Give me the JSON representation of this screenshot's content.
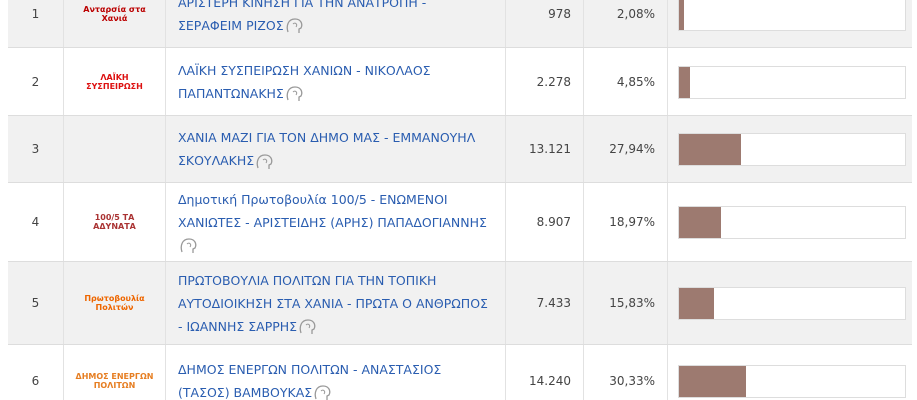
{
  "table": {
    "rows": [
      {
        "rank": "1",
        "logo_text": "Ανταρσία στα Χανιά",
        "name": "ΑΡΙΣΤΕΡΗ ΚΙΝΗΣΗ ΓΙΑ ΤΗΝ ΑΝΑΤΡΟΠΗ - ΣΕΡΑΦΕΙΜ ΡΙΖΟΣ",
        "votes": "978",
        "percent": {
          "value": 2.08,
          "label": "2,08%"
        }
      },
      {
        "rank": "2",
        "logo_text": "ΛΑΪΚΗ ΣΥΣΠΕΙΡΩΣΗ",
        "name": "ΛΑΪΚΗ ΣΥΣΠΕΙΡΩΣΗ ΧΑΝΙΩΝ - ΝΙΚΟΛΑΟΣ ΠΑΠΑΝΤΩΝΑΚΗΣ",
        "votes": "2.278",
        "percent": {
          "value": 4.85,
          "label": "4,85%"
        }
      },
      {
        "rank": "3",
        "logo_text": "",
        "name": "ΧΑΝΙΑ ΜΑΖΙ ΓΙΑ ΤΟΝ ΔΗΜΟ ΜΑΣ - ΕΜΜΑΝΟΥΗΛ ΣΚΟΥΛΑΚΗΣ",
        "votes": "13.121",
        "percent": {
          "value": 27.94,
          "label": "27,94%"
        }
      },
      {
        "rank": "4",
        "logo_text": "100/5 ΤΑ ΑΔΥΝΑΤΑ",
        "name": "Δημοτική Πρωτοβουλία 100/5 - ΕΝΩΜΕΝΟΙ ΧΑΝΙΩΤΕΣ - ΑΡΙΣΤΕΙΔΗΣ (ΑΡΗΣ) ΠΑΠΑΔΟΓΙΑΝΝΗΣ",
        "votes": "8.907",
        "percent": {
          "value": 18.97,
          "label": "18,97%"
        }
      },
      {
        "rank": "5",
        "logo_text": "Πρωτοβουλία Πολιτών",
        "name": "ΠΡΩΤΟΒΟΥΛΙΑ ΠΟΛΙΤΩΝ ΓΙΑ ΤΗΝ ΤΟΠΙΚΗ ΑΥΤΟΔΙΟΙΚΗΣΗ ΣΤΑ ΧΑΝΙΑ - ΠΡΩΤΑ Ο ΑΝΘΡΩΠΟΣ - ΙΩΑΝΝΗΣ ΣΑΡΡΗΣ",
        "votes": "7.433",
        "percent": {
          "value": 15.83,
          "label": "15,83%"
        }
      },
      {
        "rank": "6",
        "logo_text": "ΔΗΜΟΣ ΕΝΕΡΓΩΝ ΠΟΛΙΤΩΝ",
        "name": "ΔΗΜΟΣ ΕΝΕΡΓΩΝ ΠΟΛΙΤΩΝ - ΑΝΑΣΤΑΣΙΟΣ (ΤΑΣΟΣ) ΒΑΜΒΟΥΚΑΣ",
        "votes": "14.240",
        "percent": {
          "value": 30.33,
          "label": "30,33%"
        }
      }
    ]
  }
}
